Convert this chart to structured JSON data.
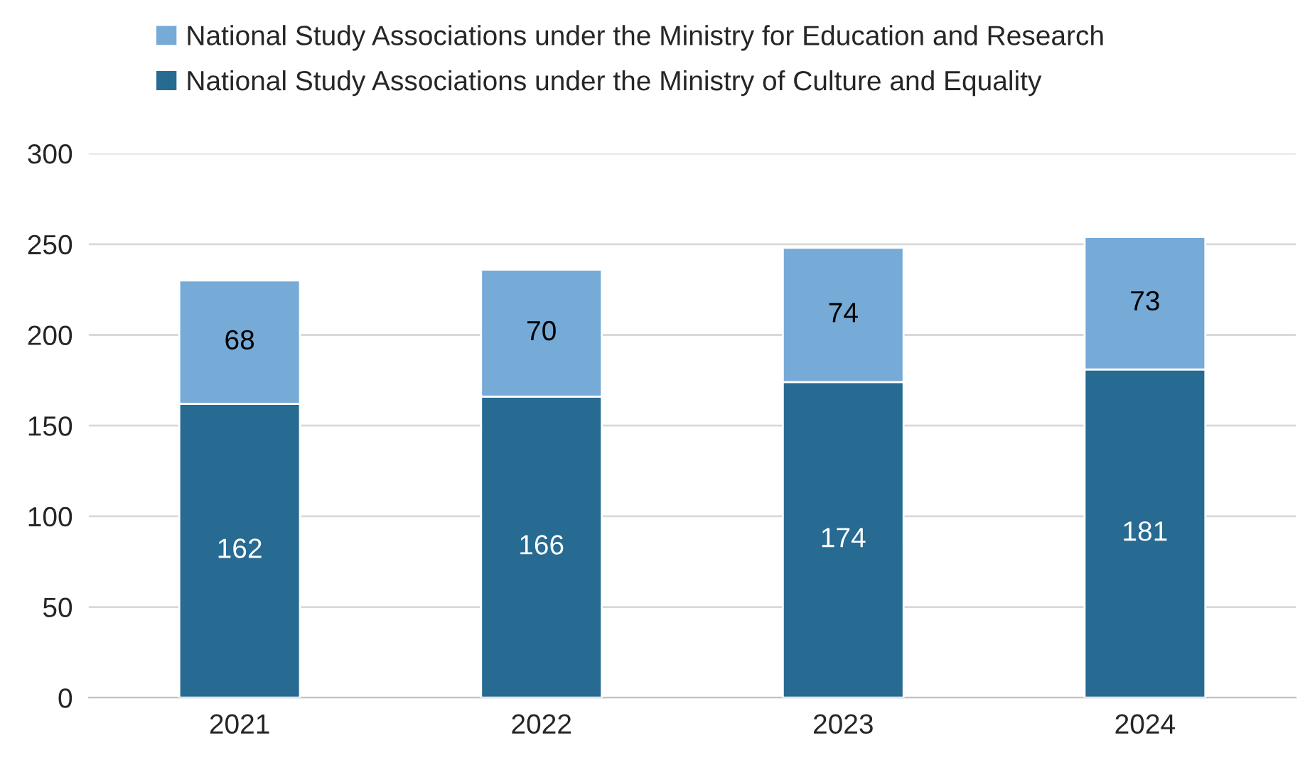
{
  "chart_data": {
    "type": "bar",
    "stacked": true,
    "categories": [
      "2021",
      "2022",
      "2023",
      "2024"
    ],
    "series": [
      {
        "name": "National Study Associations under the Ministry of Culture and Equality",
        "color": "#276a92",
        "values": [
          162,
          166,
          174,
          181
        ]
      },
      {
        "name": "National Study Associations under the Ministry for Education and Research",
        "color": "#76aad7",
        "values": [
          68,
          70,
          74,
          73
        ]
      }
    ],
    "ylim": [
      0,
      300
    ],
    "yticks": [
      0,
      50,
      100,
      150,
      200,
      250,
      300
    ],
    "grid": "y",
    "legend": "top",
    "data_labels": true
  }
}
